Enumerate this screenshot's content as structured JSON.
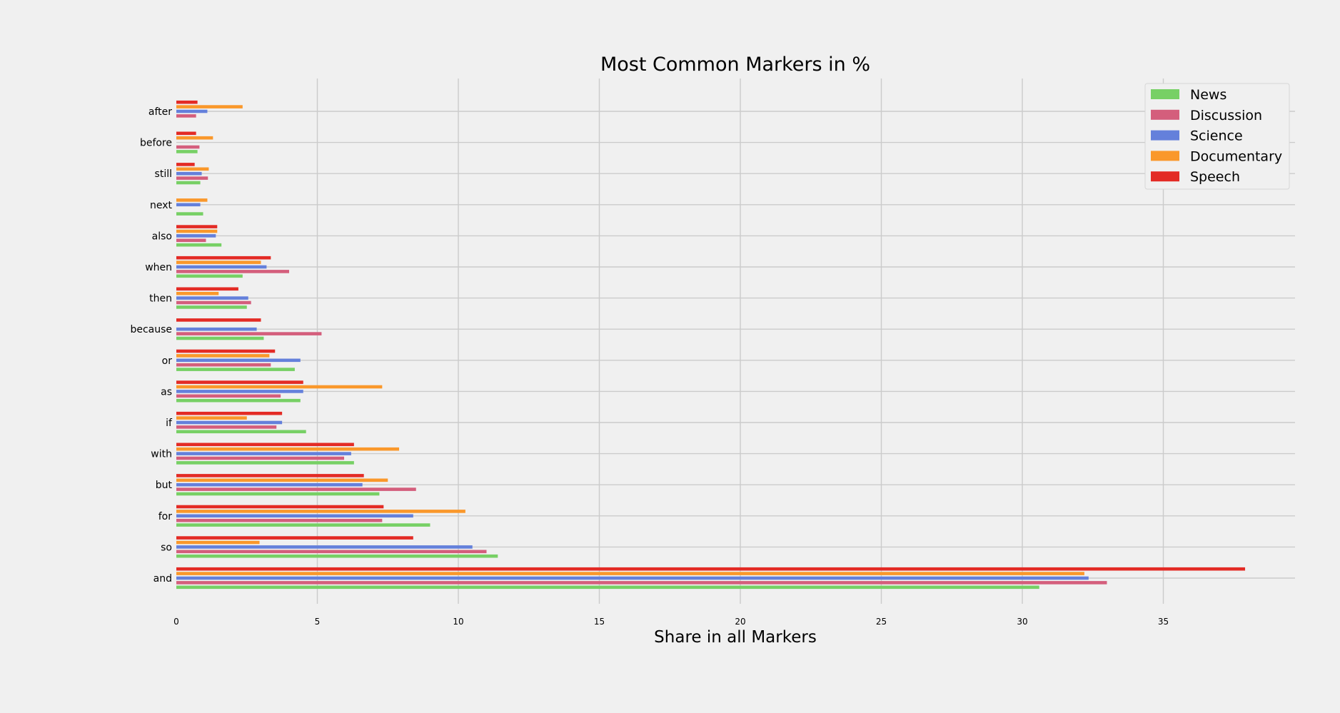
{
  "chart_data": {
    "type": "bar",
    "orientation": "horizontal",
    "title": "Most Common Markers in %",
    "xlabel": "Share in all Markers",
    "ylabel": "",
    "xlim": [
      0,
      40
    ],
    "xticks": [
      0,
      5,
      10,
      15,
      20,
      25,
      30,
      35
    ],
    "grid": true,
    "legend_position": "top-right",
    "categories": [
      "and",
      "so",
      "for",
      "but",
      "with",
      "if",
      "as",
      "or",
      "because",
      "then",
      "when",
      "also",
      "next",
      "still",
      "before",
      "after"
    ],
    "series": [
      {
        "name": "News",
        "color": "#77d065",
        "values": [
          30.6,
          11.4,
          9.0,
          7.2,
          6.3,
          4.6,
          4.4,
          4.2,
          3.1,
          2.5,
          2.35,
          1.6,
          0.95,
          0.85,
          0.75,
          0.0
        ]
      },
      {
        "name": "Discussion",
        "color": "#d45e7c",
        "values": [
          33.0,
          11.0,
          7.3,
          8.5,
          5.95,
          3.55,
          3.7,
          3.35,
          5.15,
          2.65,
          4.0,
          1.05,
          0.0,
          1.12,
          0.82,
          0.7
        ]
      },
      {
        "name": "Science",
        "color": "#6480db",
        "values": [
          32.35,
          10.5,
          8.4,
          6.6,
          6.2,
          3.75,
          4.5,
          4.4,
          2.85,
          2.55,
          3.2,
          1.4,
          0.85,
          0.9,
          0.0,
          1.1
        ]
      },
      {
        "name": "Documentary",
        "color": "#fa982b",
        "values": [
          32.2,
          2.95,
          10.25,
          7.5,
          7.9,
          2.5,
          7.3,
          3.3,
          0.0,
          1.5,
          3.0,
          1.45,
          1.1,
          1.15,
          1.3,
          2.35
        ]
      },
      {
        "name": "Speech",
        "color": "#e32b25",
        "values": [
          37.9,
          8.4,
          7.35,
          6.65,
          6.3,
          3.75,
          4.5,
          3.5,
          3.0,
          2.2,
          3.35,
          1.45,
          0.0,
          0.65,
          0.7,
          0.75
        ]
      }
    ]
  }
}
